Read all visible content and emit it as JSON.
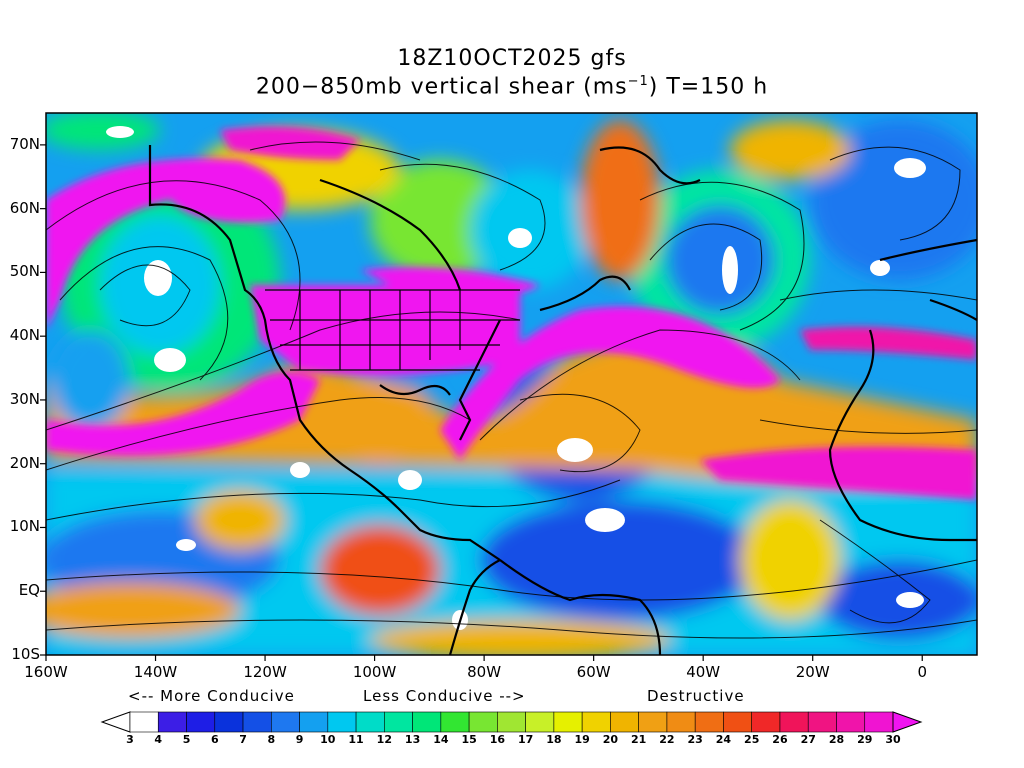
{
  "title": {
    "line1": "18Z10OCT2025 gfs",
    "line2_prefix": "200−850mb vertical shear (ms",
    "line2_sup": "−1",
    "line2_suffix": ") T=150 h"
  },
  "map": {
    "lat_labels": [
      "70N",
      "60N",
      "50N",
      "40N",
      "30N",
      "20N",
      "10N",
      "EQ",
      "10S"
    ],
    "lat_values": [
      70,
      60,
      50,
      40,
      30,
      20,
      10,
      0,
      -10
    ],
    "lon_labels": [
      "160W",
      "140W",
      "120W",
      "100W",
      "80W",
      "60W",
      "40W",
      "20W",
      "0"
    ],
    "lon_values": [
      -160,
      -140,
      -120,
      -100,
      -80,
      -60,
      -40,
      -20,
      0
    ],
    "lon_range": [
      -160,
      10
    ],
    "lat_range": [
      -10,
      75
    ]
  },
  "legend": {
    "more_conducive": "<-- More Conducive",
    "less_conducive": "Less Conducive -->",
    "destructive": "Destructive",
    "levels": [
      "3",
      "4",
      "5",
      "6",
      "7",
      "8",
      "9",
      "10",
      "11",
      "12",
      "13",
      "14",
      "15",
      "16",
      "17",
      "18",
      "19",
      "20",
      "21",
      "22",
      "23",
      "24",
      "25",
      "26",
      "27",
      "28",
      "29",
      "30"
    ],
    "colors": [
      "#ffffff",
      "#3c1ee6",
      "#1e1ee6",
      "#0a32dc",
      "#1450e6",
      "#1e78f0",
      "#14a0f0",
      "#00c8f0",
      "#00dcc8",
      "#00e6a0",
      "#00e678",
      "#32e632",
      "#78e632",
      "#a0e632",
      "#c8f028",
      "#e6f000",
      "#f0d200",
      "#f0b400",
      "#f0a014",
      "#f08c14",
      "#f06e14",
      "#f05014",
      "#f02828",
      "#f0145a",
      "#f01482",
      "#f014aa",
      "#f014d2",
      "#f014f0"
    ]
  }
}
